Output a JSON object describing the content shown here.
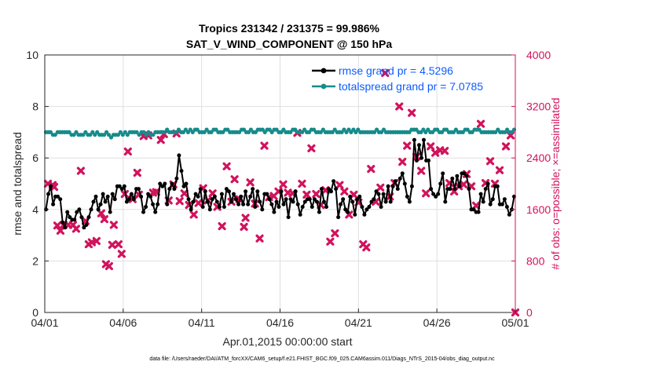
{
  "chart_data": {
    "type": "line",
    "title_line1": "Tropics 231342 / 231375 = 99.986%",
    "title_line2": "SAT_V_WIND_COMPONENT @ 150 hPa",
    "xlabel": "Apr.01,2015 00:00:00 start",
    "ylabel_left": "rmse and totalspread",
    "ylabel_right": "# of obs: o=possible; ×=assimilated",
    "ylim_left": [
      0,
      10
    ],
    "ylim_right": [
      0,
      4000
    ],
    "xlim_days": [
      0,
      30
    ],
    "x_tick_labels": [
      "04/01",
      "04/06",
      "04/11",
      "04/16",
      "04/21",
      "04/26",
      "05/01"
    ],
    "x_tick_days": [
      0,
      5,
      10,
      15,
      20,
      25,
      30
    ],
    "y_left_ticks": [
      "0",
      "2",
      "4",
      "6",
      "8",
      "10"
    ],
    "y_right_ticks": [
      "0",
      "800",
      "1600",
      "2400",
      "3200",
      "4000"
    ],
    "legend": {
      "rmse_label": "rmse grand pr = 4.5296",
      "spread_label": "totalspread grand pr = 7.0785",
      "position": "top-right"
    },
    "colors": {
      "rmse": "#000000",
      "spread": "#168b8b",
      "obs": "#d1135c",
      "legend_text": "#0b5cff"
    },
    "series": [
      {
        "name": "rmse",
        "values": [
          4.0,
          4.6,
          4.9,
          4.2,
          4.5,
          4.5,
          4.4,
          3.5,
          3.3,
          3.9,
          3.7,
          3.6,
          3.6,
          3.9,
          4.0,
          3.7,
          3.3,
          3.4,
          3.7,
          4.0,
          4.3,
          4.5,
          4.0,
          4.2,
          4.6,
          4.3,
          4.5,
          3.9,
          4.6,
          4.4,
          4.9,
          4.9,
          4.8,
          4.9,
          4.3,
          4.4,
          4.6,
          4.4,
          4.8,
          4.8,
          4.5,
          3.9,
          4.1,
          4.6,
          4.5,
          4.2,
          3.9,
          4.2,
          5.0,
          4.9,
          5.0,
          4.2,
          4.8,
          5.0,
          4.8,
          5.2,
          6.1,
          5.5,
          4.9,
          5.0,
          4.4,
          4.0,
          4.3,
          4.6,
          4.5,
          4.8,
          4.1,
          4.7,
          4.3,
          4.0,
          4.4,
          4.5,
          4.3,
          4.1,
          4.6,
          4.1,
          4.8,
          4.7,
          4.3,
          4.6,
          4.4,
          4.2,
          4.5,
          4.2,
          4.7,
          4.2,
          4.5,
          4.8,
          4.1,
          4.7,
          4.3,
          4.0,
          4.6,
          4.6,
          4.4,
          4.2,
          3.9,
          4.3,
          4.1,
          4.7,
          4.2,
          4.4,
          3.7,
          4.4,
          4.3,
          4.7,
          4.2,
          3.8,
          4.1,
          4.3,
          4.4,
          4.4,
          4.1,
          4.4,
          4.3,
          3.9,
          4.8,
          4.3,
          4.1,
          4.8,
          4.7,
          5.1,
          4.8,
          3.7,
          4.2,
          4.4,
          4.0,
          3.9,
          4.5,
          4.3,
          3.8,
          4.4,
          4.5,
          4.1,
          3.8,
          4.0,
          4.1,
          4.3,
          4.4,
          4.7,
          4.6,
          4.1,
          4.6,
          4.3,
          4.9,
          4.3,
          4.9,
          5.1,
          4.8,
          5.2,
          5.4,
          5.0,
          4.5,
          4.3,
          4.9,
          6.7,
          5.9,
          6.5,
          6.0,
          6.7,
          5.9,
          5.9,
          4.8,
          4.6,
          4.5,
          4.6,
          5.0,
          5.4,
          4.3,
          4.8,
          4.8,
          5.2,
          4.8,
          5.3,
          4.9,
          5.4,
          5.4,
          5.3,
          4.8,
          4.0,
          4.0,
          3.9,
          3.9,
          4.6,
          4.3,
          4.8,
          5.0,
          4.2,
          4.4,
          4.9,
          4.9,
          4.2,
          4.2,
          4.4,
          4.1,
          3.8,
          4.0,
          4.5
        ]
      },
      {
        "name": "totalspread",
        "values": [
          7.0,
          7.0,
          7.0,
          6.9,
          6.9,
          7.0,
          7.0,
          7.0,
          7.0,
          7.0,
          7.0,
          6.9,
          6.9,
          7.0,
          6.9,
          6.9,
          6.9,
          7.0,
          6.9,
          6.9,
          7.0,
          6.9,
          7.0,
          6.9,
          6.9,
          6.9,
          7.0,
          6.9,
          6.8,
          6.9,
          6.9,
          6.9,
          7.0,
          6.9,
          7.0,
          6.9,
          7.0,
          7.0,
          7.0,
          7.0,
          6.9,
          7.0,
          7.0,
          6.9,
          7.0,
          6.9,
          6.9,
          7.0,
          7.0,
          7.0,
          7.0,
          7.0,
          7.1,
          7.0,
          7.0,
          7.0,
          7.0,
          7.1,
          7.0,
          7.0,
          7.1,
          7.0,
          7.1,
          7.0,
          7.1,
          7.1,
          7.0,
          7.0,
          7.0,
          7.1,
          7.0,
          7.0,
          7.1,
          7.1,
          7.0,
          7.0,
          7.0,
          7.1,
          7.1,
          7.0,
          7.0,
          7.0,
          7.0,
          7.0,
          7.1,
          7.1,
          7.0,
          7.0,
          7.1,
          7.0,
          7.0,
          7.1,
          7.1,
          7.1,
          7.0,
          7.1,
          7.1,
          7.0,
          7.1,
          7.1,
          7.0,
          7.0,
          7.1,
          7.0,
          7.0,
          7.0,
          7.1,
          7.1,
          7.0,
          7.0,
          7.0,
          7.1,
          7.0,
          7.0,
          7.1,
          7.1,
          7.0,
          7.0,
          7.0,
          7.1,
          7.0,
          7.0,
          7.0,
          7.0,
          7.1,
          7.0,
          7.0,
          7.0,
          7.1,
          7.0,
          7.1,
          7.0,
          7.1,
          7.0,
          7.1,
          7.0,
          7.0,
          7.0,
          7.0,
          7.0,
          7.0,
          7.0,
          7.1,
          7.0,
          7.0,
          7.1,
          7.0,
          7.0,
          7.0,
          7.0,
          7.0,
          7.0,
          7.0,
          7.0,
          7.0,
          7.0,
          7.0,
          7.1,
          7.1,
          7.1,
          7.0,
          7.0,
          7.1,
          7.0,
          7.1,
          7.0,
          7.0,
          7.1,
          7.1,
          7.0,
          7.0,
          7.1,
          7.1,
          7.0,
          7.0,
          7.0,
          7.1,
          7.0,
          7.0,
          7.0,
          7.1,
          7.1,
          7.0,
          7.0,
          7.1,
          7.1,
          7.1,
          7.0,
          7.0,
          7.0,
          7.0,
          7.0,
          7.0,
          7.0,
          7.1,
          7.0,
          7.0,
          7.0,
          7.1,
          7.0,
          7.0,
          7.1
        ]
      },
      {
        "name": "obs_assimilated",
        "points": [
          [
            0.2,
            2000
          ],
          [
            0.5,
            1980
          ],
          [
            0.6,
            1950
          ],
          [
            0.8,
            1350
          ],
          [
            1.0,
            1270
          ],
          [
            1.2,
            1360
          ],
          [
            1.5,
            1360
          ],
          [
            1.8,
            1360
          ],
          [
            2.0,
            1300
          ],
          [
            2.3,
            2200
          ],
          [
            2.6,
            1420
          ],
          [
            2.8,
            1060
          ],
          [
            3.0,
            1090
          ],
          [
            3.3,
            1110
          ],
          [
            3.6,
            1540
          ],
          [
            3.8,
            1450
          ],
          [
            3.9,
            750
          ],
          [
            4.1,
            720
          ],
          [
            4.3,
            1050
          ],
          [
            4.4,
            1360
          ],
          [
            4.7,
            1060
          ],
          [
            4.9,
            910
          ],
          [
            5.1,
            1840
          ],
          [
            5.3,
            2500
          ],
          [
            5.6,
            1760
          ],
          [
            5.9,
            2170
          ],
          [
            6.0,
            1830
          ],
          [
            6.3,
            2740
          ],
          [
            6.6,
            2750
          ],
          [
            6.9,
            1860
          ],
          [
            7.1,
            1870
          ],
          [
            7.4,
            2680
          ],
          [
            7.6,
            2770
          ],
          [
            7.9,
            1740
          ],
          [
            8.2,
            1990
          ],
          [
            8.4,
            2780
          ],
          [
            8.6,
            1730
          ],
          [
            8.9,
            1850
          ],
          [
            9.2,
            1670
          ],
          [
            9.5,
            1520
          ],
          [
            9.8,
            1700
          ],
          [
            10.1,
            1930
          ],
          [
            10.4,
            1740
          ],
          [
            10.7,
            1850
          ],
          [
            11.0,
            1640
          ],
          [
            11.3,
            1340
          ],
          [
            11.6,
            2270
          ],
          [
            11.9,
            1720
          ],
          [
            12.1,
            2070
          ],
          [
            12.4,
            1760
          ],
          [
            12.7,
            1330
          ],
          [
            12.8,
            1470
          ],
          [
            13.1,
            2020
          ],
          [
            13.4,
            1690
          ],
          [
            13.7,
            1150
          ],
          [
            14.0,
            2590
          ],
          [
            14.3,
            1790
          ],
          [
            14.6,
            1810
          ],
          [
            14.9,
            1880
          ],
          [
            15.2,
            1990
          ],
          [
            15.5,
            1860
          ],
          [
            15.8,
            1850
          ],
          [
            16.1,
            2790
          ],
          [
            16.4,
            2000
          ],
          [
            16.7,
            1830
          ],
          [
            17.0,
            2550
          ],
          [
            17.3,
            1840
          ],
          [
            17.6,
            1670
          ],
          [
            17.9,
            1900
          ],
          [
            18.2,
            1100
          ],
          [
            18.5,
            1230
          ],
          [
            18.8,
            1980
          ],
          [
            19.1,
            1880
          ],
          [
            19.4,
            1520
          ],
          [
            19.7,
            1830
          ],
          [
            20.0,
            1710
          ],
          [
            20.3,
            1060
          ],
          [
            20.5,
            1010
          ],
          [
            20.8,
            2230
          ],
          [
            21.1,
            1720
          ],
          [
            21.4,
            1940
          ],
          [
            21.7,
            3720
          ],
          [
            22.0,
            1800
          ],
          [
            22.3,
            2010
          ],
          [
            22.6,
            3200
          ],
          [
            22.8,
            2340
          ],
          [
            23.1,
            2590
          ],
          [
            23.4,
            3100
          ],
          [
            23.7,
            2420
          ],
          [
            24.0,
            2200
          ],
          [
            24.3,
            1850
          ],
          [
            24.6,
            2580
          ],
          [
            24.9,
            2480
          ],
          [
            25.2,
            2520
          ],
          [
            25.5,
            2510
          ],
          [
            25.8,
            2010
          ],
          [
            26.1,
            1880
          ],
          [
            26.4,
            1960
          ],
          [
            26.7,
            1990
          ],
          [
            26.9,
            2150
          ],
          [
            27.2,
            1960
          ],
          [
            27.5,
            1660
          ],
          [
            27.8,
            2930
          ],
          [
            28.1,
            2010
          ],
          [
            28.4,
            2350
          ],
          [
            28.7,
            2000
          ],
          [
            29.0,
            2210
          ],
          [
            29.4,
            2580
          ],
          [
            29.7,
            2750
          ],
          [
            30.0,
            0
          ]
        ]
      }
    ]
  },
  "footnote": "data file: /Users/raeder/DAI/ATM_forcXX/CAM6_setup/f.e21.FHIST_BGC.f09_025.CAM6assim.011/Diags_NTrS_2015-04/obs_diag_output.nc"
}
